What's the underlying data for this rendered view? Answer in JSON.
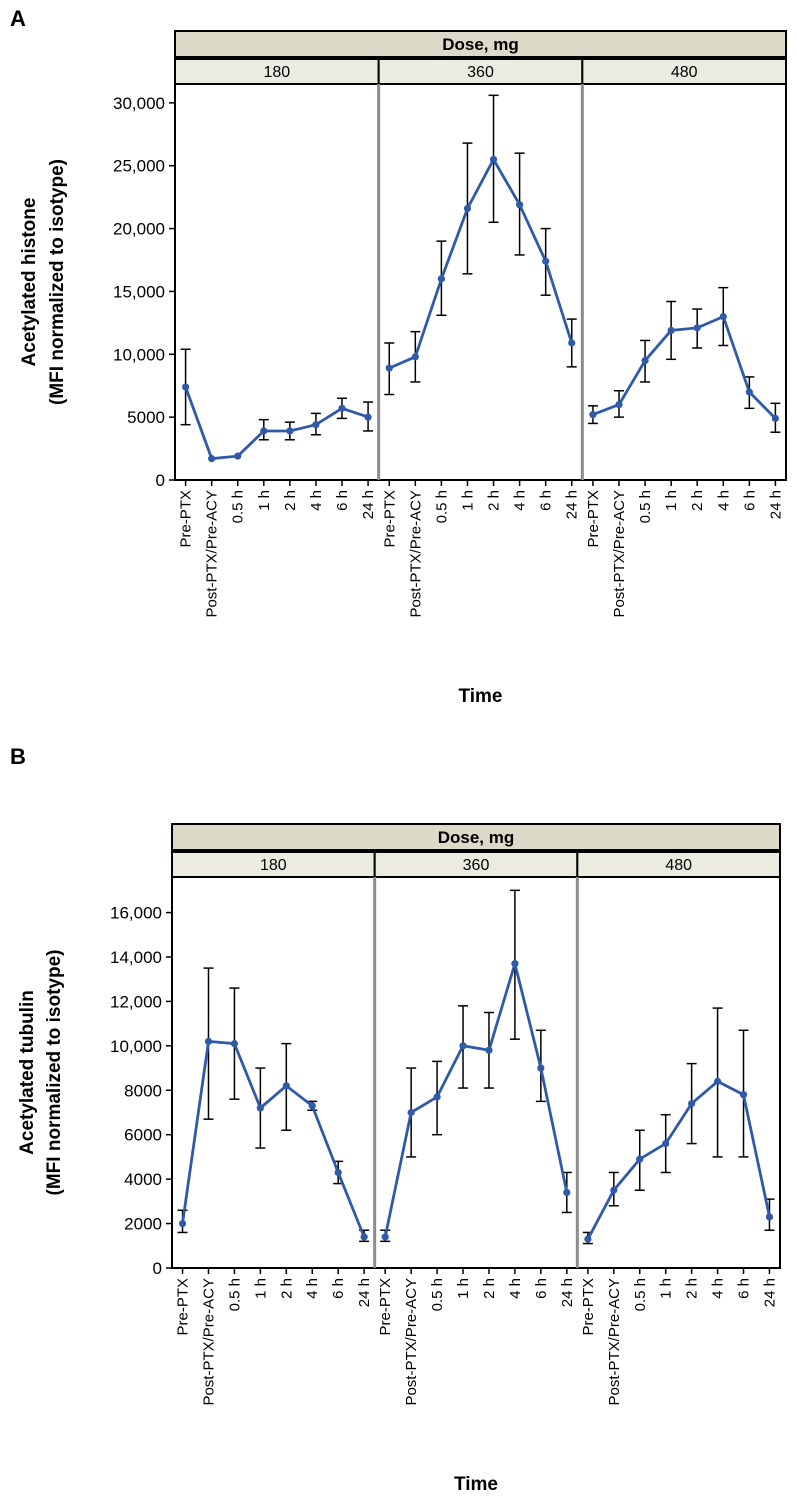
{
  "chart_data": [
    {
      "panel_letter": "A",
      "type": "line",
      "facet_title": "Dose, mg",
      "facets": [
        "180",
        "360",
        "480"
      ],
      "categories": [
        "Pre-PTX",
        "Post-PTX/Pre-ACY",
        "0.5 h",
        "1 h",
        "2 h",
        "4 h",
        "6 h",
        "24 h"
      ],
      "xlabel": "Time",
      "ylabel": [
        "Acetylated histone",
        "(MFI normalized to isotype)"
      ],
      "yticks": [
        0,
        5000,
        10000,
        15000,
        20000,
        25000,
        30000
      ],
      "ytick_labels": [
        "0",
        "5000",
        "10,000",
        "15,000",
        "20,000",
        "25,000",
        "30,000"
      ],
      "ylim": [
        0,
        31500
      ],
      "line_color": "#2e5aa8",
      "series": [
        {
          "name": "180",
          "values": [
            7400,
            1700,
            1900,
            3900,
            3900,
            4400,
            5700,
            5000
          ],
          "err_low": [
            4400,
            1700,
            1900,
            3200,
            3200,
            3600,
            4900,
            3900
          ],
          "err_high": [
            10400,
            1700,
            1900,
            4800,
            4600,
            5300,
            6500,
            6200
          ]
        },
        {
          "name": "360",
          "values": [
            8900,
            9800,
            16000,
            21600,
            25500,
            21900,
            17400,
            10900
          ],
          "err_low": [
            6800,
            7800,
            13100,
            16400,
            20500,
            17900,
            14700,
            9000
          ],
          "err_high": [
            10900,
            11800,
            19000,
            26800,
            30600,
            26000,
            20000,
            12800
          ]
        },
        {
          "name": "480",
          "values": [
            5200,
            6000,
            9500,
            11900,
            12100,
            13000,
            7000,
            4900
          ],
          "err_low": [
            4500,
            5000,
            7800,
            9600,
            10500,
            10700,
            5700,
            3800
          ],
          "err_high": [
            5900,
            7100,
            11100,
            14200,
            13600,
            15300,
            8200,
            6100
          ]
        }
      ]
    },
    {
      "panel_letter": "B",
      "type": "line",
      "facet_title": "Dose, mg",
      "facets": [
        "180",
        "360",
        "480"
      ],
      "categories": [
        "Pre-PTX",
        "Post-PTX/Pre-ACY",
        "0.5 h",
        "1 h",
        "2 h",
        "4 h",
        "6 h",
        "24 h"
      ],
      "xlabel": "Time",
      "ylabel": [
        "Acetylated tubulin",
        "(MFI normalized to isotype)"
      ],
      "yticks": [
        0,
        2000,
        4000,
        6000,
        8000,
        10000,
        12000,
        14000,
        16000
      ],
      "ytick_labels": [
        "0",
        "2000",
        "4000",
        "6000",
        "8000",
        "10,000",
        "12,000",
        "14,000",
        "16,000"
      ],
      "ylim": [
        0,
        17600
      ],
      "line_color": "#2e5aa8",
      "series": [
        {
          "name": "180",
          "values": [
            2000,
            10200,
            10100,
            7200,
            8200,
            7300,
            4300,
            1400
          ],
          "err_low": [
            1600,
            6700,
            7600,
            5400,
            6200,
            7100,
            3800,
            1200
          ],
          "err_high": [
            2600,
            13500,
            12600,
            9000,
            10100,
            7500,
            4800,
            1700
          ]
        },
        {
          "name": "360",
          "values": [
            1400,
            7000,
            7700,
            10000,
            9800,
            13700,
            9000,
            3400
          ],
          "err_low": [
            1200,
            5000,
            6000,
            8100,
            8100,
            10300,
            7500,
            2500
          ],
          "err_high": [
            1700,
            9000,
            9300,
            11800,
            11500,
            17000,
            10700,
            4300
          ]
        },
        {
          "name": "480",
          "values": [
            1300,
            3500,
            4900,
            5600,
            7400,
            8400,
            7800,
            2300
          ],
          "err_low": [
            1100,
            2800,
            3500,
            4300,
            5600,
            5000,
            5000,
            1700
          ],
          "err_high": [
            1600,
            4300,
            6200,
            6900,
            9200,
            11700,
            10700,
            3100
          ]
        }
      ]
    }
  ]
}
